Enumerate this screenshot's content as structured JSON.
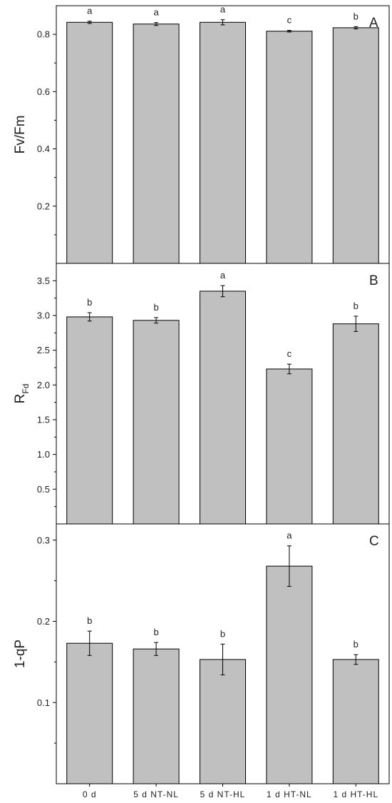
{
  "categories": [
    "0 d",
    "5 d NT-NL",
    "5 d NT-HL",
    "1 d HT-NL",
    "1 d HT-HL"
  ],
  "colors": {
    "bar_fill": "#c0c0c0",
    "bar_stroke": "#000000",
    "axis": "#000000"
  },
  "chart_data": [
    {
      "type": "bar",
      "panel_label": "A",
      "ylabel": "Fv/Fm",
      "ylim": [
        0.0,
        0.9
      ],
      "yticks": [
        0.2,
        0.4,
        0.6,
        0.8
      ],
      "ytick_labels": [
        "0.2",
        "0.4",
        "0.6",
        "0.8"
      ],
      "categories": [
        "0 d",
        "5 d NT-NL",
        "5 d NT-HL",
        "1 d HT-NL",
        "1 d HT-HL"
      ],
      "values": [
        0.842,
        0.836,
        0.842,
        0.811,
        0.823
      ],
      "errors": [
        0.004,
        0.005,
        0.009,
        0.003,
        0.004
      ],
      "significance": [
        "a",
        "a",
        "a",
        "c",
        "b"
      ],
      "grid": false
    },
    {
      "type": "bar",
      "panel_label": "B",
      "ylabel": "R",
      "ylabel_sub": "Fd",
      "ylim": [
        0.0,
        3.75
      ],
      "yticks": [
        0.5,
        1.0,
        1.5,
        2.0,
        2.5,
        3.0,
        3.5
      ],
      "ytick_labels": [
        "0.5",
        "1.0",
        "1.5",
        "2.0",
        "2.5",
        "3.0",
        "3.5"
      ],
      "categories": [
        "0 d",
        "5 d NT-NL",
        "5 d NT-HL",
        "1 d HT-NL",
        "1 d HT-HL"
      ],
      "values": [
        2.98,
        2.93,
        3.35,
        2.23,
        2.88
      ],
      "errors": [
        0.06,
        0.04,
        0.08,
        0.07,
        0.11
      ],
      "significance": [
        "b",
        "b",
        "a",
        "c",
        "b"
      ],
      "grid": false
    },
    {
      "type": "bar",
      "panel_label": "C",
      "ylabel": "1-qP",
      "ylim": [
        0.0,
        0.32
      ],
      "yticks": [
        0.1,
        0.2,
        0.3
      ],
      "ytick_labels": [
        "0.1",
        "0.2",
        "0.3"
      ],
      "categories": [
        "0 d",
        "5 d NT-NL",
        "5 d NT-HL",
        "1 d HT-NL",
        "1 d HT-HL"
      ],
      "values": [
        0.173,
        0.166,
        0.153,
        0.268,
        0.153
      ],
      "errors": [
        0.015,
        0.008,
        0.019,
        0.025,
        0.006
      ],
      "significance": [
        "b",
        "b",
        "b",
        "a",
        "b"
      ],
      "grid": false
    }
  ]
}
